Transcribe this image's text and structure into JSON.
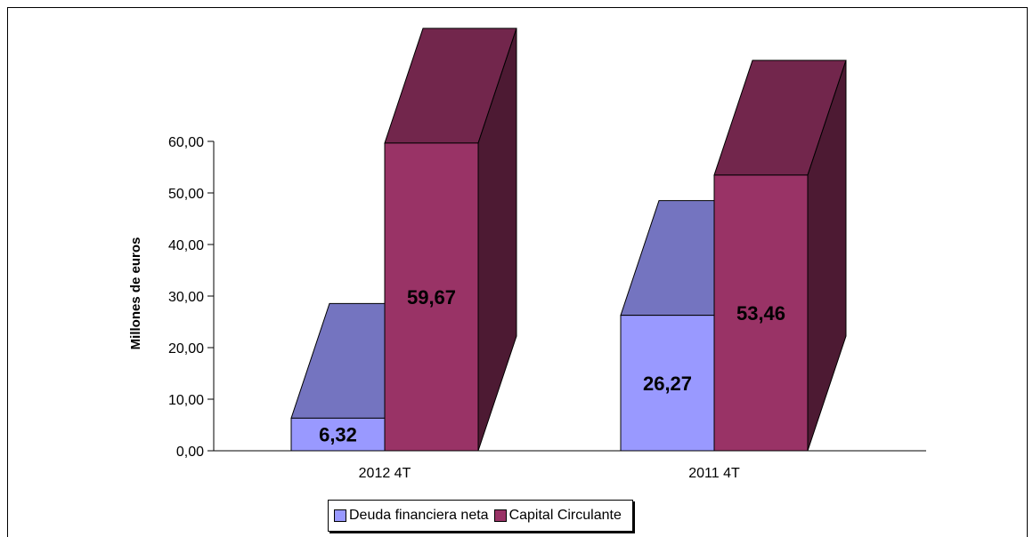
{
  "chart_data": {
    "type": "bar",
    "style": "3d-column",
    "categories": [
      "2012 4T",
      "2011 4T"
    ],
    "series": [
      {
        "name": "Deuda financiera neta",
        "values": [
          6.32,
          26.27
        ],
        "labels": [
          "6,32",
          "26,27"
        ],
        "color": "#9999ff",
        "top_color": "#7474c0"
      },
      {
        "name": "Capital Circulante",
        "values": [
          59.67,
          53.46
        ],
        "labels": [
          "59,67",
          "53,46"
        ],
        "color": "#993366",
        "top_color": "#72264c",
        "side_color": "#4d1a33"
      }
    ],
    "ylabel": "Millones de euros",
    "xlabel": "",
    "ylim": [
      0,
      60
    ],
    "yticks": [
      0,
      10,
      20,
      30,
      40,
      50,
      60
    ],
    "ytick_labels": [
      "0,00",
      "10,00",
      "20,00",
      "30,00",
      "40,00",
      "50,00",
      "60,00"
    ],
    "legend_position": "bottom",
    "grid": false
  }
}
